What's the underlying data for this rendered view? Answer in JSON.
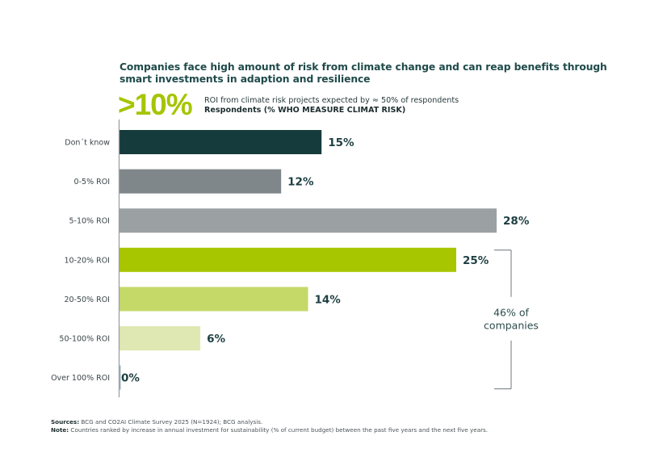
{
  "header": {
    "title": "Companies face high amount of risk from climate change and can reap benefits through smart investments in adaption and resilience",
    "highlight_value": ">10%",
    "highlight_text": "ROI from climate risk projects expected by ≈ 50% of respondents",
    "subtitle": "Respondents (% WHO MEASURE CLIMAT RISK)"
  },
  "colors": {
    "dont_know": "#163b3d",
    "roi_0_5": "#80878b",
    "roi_5_10": "#9ba1a3",
    "roi_10_20": "#a8c600",
    "roi_20_50": "#c5d969",
    "roi_50_100": "#dfe8b2",
    "roi_over_100": "#9db3c4",
    "accent": "#a6c400",
    "text_dark": "#1f4a4a",
    "bracket": "#6f7778"
  },
  "chart_data": {
    "type": "bar",
    "orientation": "horizontal",
    "title": "Companies face high amount of risk from climate change and can reap benefits through smart investments in adaption and resilience",
    "subtitle": "Respondents (% WHO MEASURE CLIMAT RISK)",
    "xlabel": "",
    "ylabel": "",
    "unit": "%",
    "categories": [
      "Don´t know",
      "0-5% ROI",
      "5-10% ROI",
      "10-20% ROI",
      "20-50% ROI",
      "50-100% ROI",
      "Over 100% ROI"
    ],
    "values": [
      15,
      12,
      28,
      25,
      14,
      6,
      0
    ],
    "data_labels": [
      "15%",
      "12%",
      "28%",
      "25%",
      "14%",
      "6%",
      "0%"
    ],
    "bar_colors": [
      "#163b3d",
      "#80878b",
      "#9ba1a3",
      "#a8c600",
      "#c5d969",
      "#dfe8b2",
      "#9db3c4"
    ],
    "grid": false,
    "annotation": {
      "text_line1": "46% of",
      "text_line2": "companies",
      "spans_categories": [
        "10-20% ROI",
        "20-50% ROI",
        "50-100% ROI",
        "Over 100% ROI"
      ]
    }
  },
  "footer": {
    "sources_label": "Sources:",
    "sources_text": " BCG and CO2AI Climate Survey 2025 (N=1924); BCG analysis.",
    "note_label": "Note:",
    "note_text": " Countries ranked by increase in annual investment for sustainability (% of current budget) between the past five years and the next five years."
  }
}
